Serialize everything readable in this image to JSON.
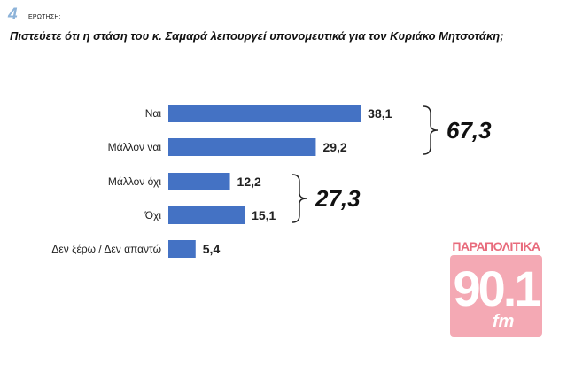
{
  "question": {
    "number": "4",
    "tag": "ΕΡΩΤΗΣΗ:",
    "text": "Πιστεύετε ότι η στάση του κ. Σαμαρά λειτουργεί υπονομευτικά για τον Κυριάκο Μητσοτάκη;"
  },
  "chart_data": {
    "type": "bar",
    "orientation": "horizontal",
    "categories": [
      "Ναι",
      "Μάλλον ναι",
      "Μάλλον όχι",
      "Όχι",
      "Δεν ξέρω / Δεν απαντώ"
    ],
    "values": [
      38.1,
      29.2,
      12.2,
      15.1,
      5.4
    ],
    "value_labels": [
      "38,1",
      "29,2",
      "12,2",
      "15,1",
      "5,4"
    ],
    "bar_color": "#4472c4",
    "grid": false,
    "groups": [
      {
        "label": "67,3",
        "from": 0,
        "to": 1
      },
      {
        "label": "27,3",
        "from": 2,
        "to": 3
      }
    ]
  },
  "badge": {
    "top": "ΠΑΡΑΠΟΛΙΤΙΚΑ",
    "number": "90.1",
    "suffix": "fm",
    "color": "#f4a9b4"
  }
}
